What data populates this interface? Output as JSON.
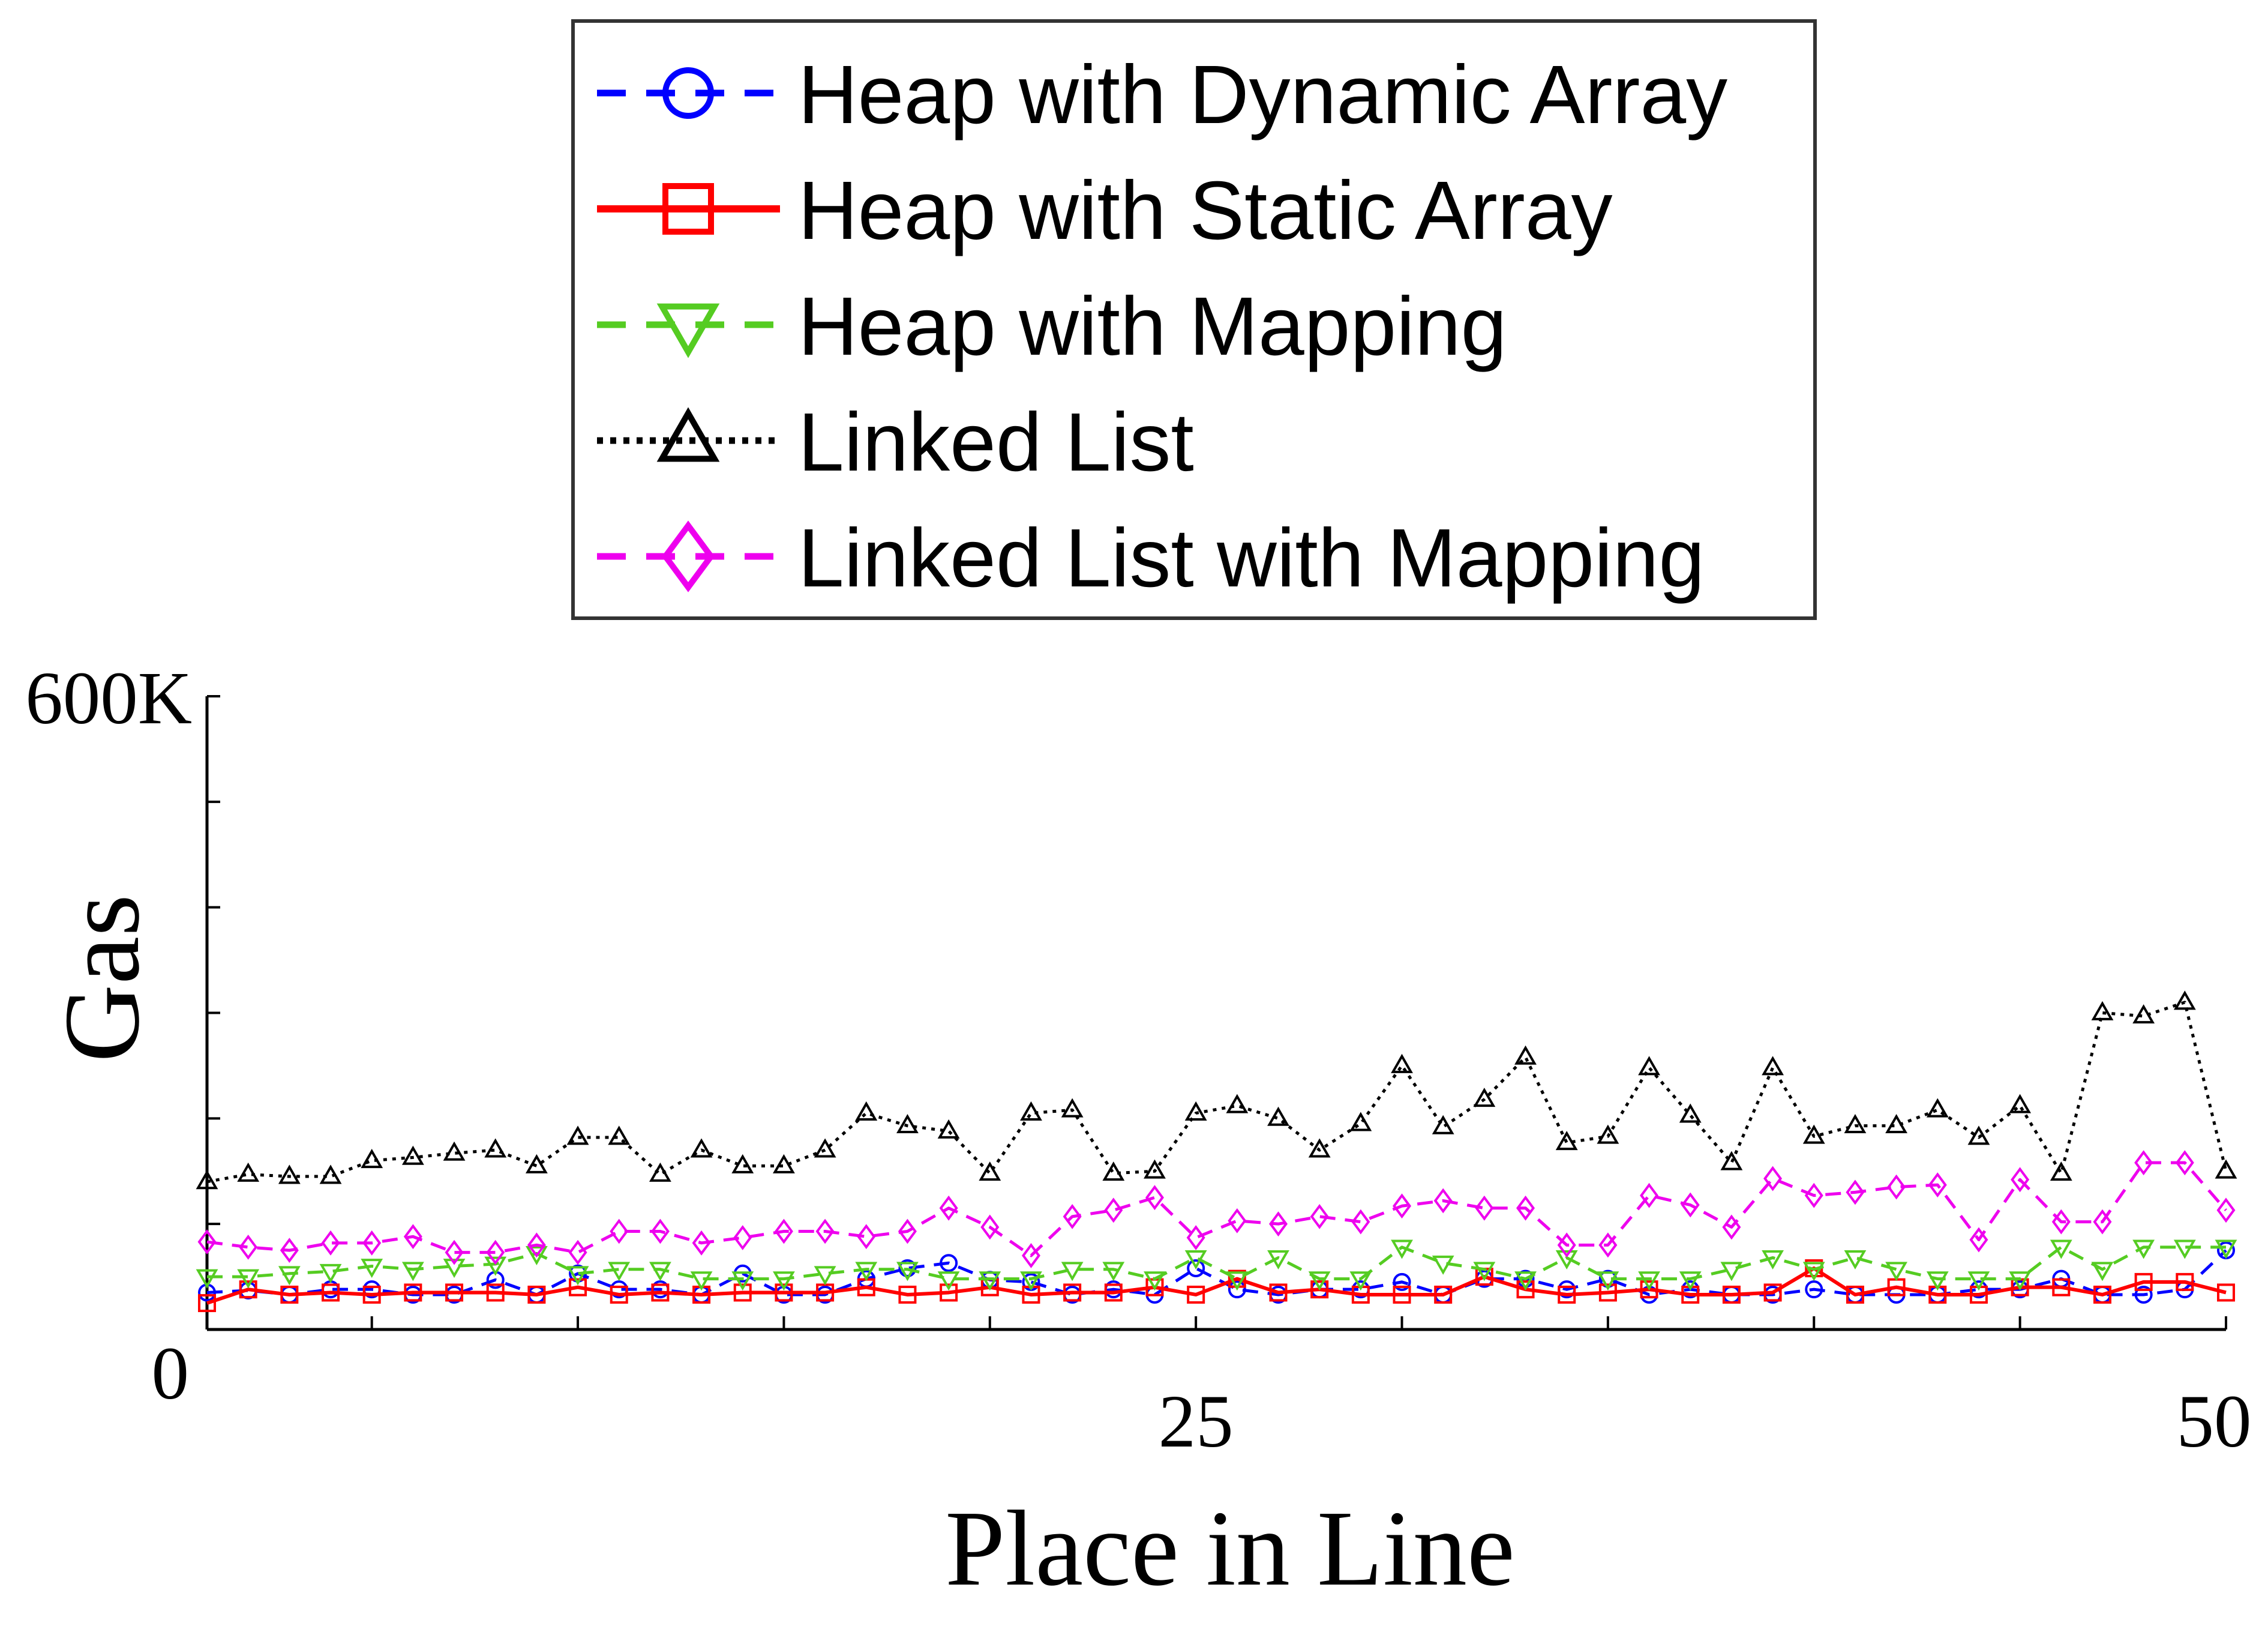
{
  "chart_data": {
    "type": "line",
    "title": "",
    "xlabel": "Place in Line",
    "ylabel": "Gas",
    "xlim": [
      1,
      50
    ],
    "ylim": [
      0,
      600000
    ],
    "x_tick_labels": [
      {
        "value": 25,
        "label": "25"
      },
      {
        "value": 50,
        "label": "50"
      }
    ],
    "y_tick_labels": [
      {
        "value": 0,
        "label": "0"
      },
      {
        "value": 600000,
        "label": "600K"
      }
    ],
    "legend_position": "top",
    "series": [
      {
        "name": "Heap with Dynamic Array",
        "color": "#0000ff",
        "marker": "circle",
        "line": "dashed",
        "values": [
          35000,
          37000,
          33000,
          38000,
          38000,
          33000,
          33000,
          47000,
          33000,
          53000,
          38000,
          38000,
          33000,
          53000,
          33000,
          33000,
          48000,
          58000,
          63000,
          47000,
          45000,
          33000,
          38000,
          33000,
          58000,
          38000,
          33000,
          38000,
          38000,
          45000,
          33000,
          48000,
          48000,
          38000,
          48000,
          33000,
          38000,
          33000,
          33000,
          38000,
          33000,
          33000,
          33000,
          38000,
          38000,
          48000,
          33000,
          33000,
          38000,
          75000
        ]
      },
      {
        "name": "Heap with Static Array",
        "color": "#ff0000",
        "marker": "square",
        "line": "solid",
        "values": [
          25000,
          38000,
          33000,
          35000,
          33000,
          35000,
          35000,
          35000,
          33000,
          40000,
          33000,
          35000,
          33000,
          35000,
          35000,
          35000,
          40000,
          33000,
          35000,
          40000,
          33000,
          35000,
          35000,
          40000,
          33000,
          48000,
          35000,
          38000,
          33000,
          33000,
          33000,
          50000,
          38000,
          33000,
          35000,
          38000,
          33000,
          33000,
          35000,
          58000,
          33000,
          40000,
          33000,
          33000,
          40000,
          40000,
          33000,
          45000,
          45000,
          35000
        ]
      },
      {
        "name": "Heap with Mapping",
        "color": "#55cc22",
        "marker": "triangle-down",
        "line": "dashed",
        "values": [
          50000,
          50000,
          53000,
          55000,
          60000,
          57000,
          60000,
          62000,
          72000,
          53000,
          57000,
          57000,
          48000,
          48000,
          48000,
          53000,
          57000,
          57000,
          48000,
          48000,
          48000,
          57000,
          57000,
          48000,
          68000,
          48000,
          68000,
          48000,
          48000,
          78000,
          63000,
          57000,
          48000,
          68000,
          48000,
          48000,
          48000,
          57000,
          68000,
          57000,
          68000,
          57000,
          48000,
          48000,
          48000,
          78000,
          57000,
          78000,
          78000,
          78000
        ]
      },
      {
        "name": "Linked List",
        "color": "#000000",
        "marker": "triangle-up",
        "line": "dotted",
        "values": [
          140000,
          147000,
          145000,
          145000,
          160000,
          163000,
          167000,
          170000,
          155000,
          182000,
          182000,
          147000,
          170000,
          155000,
          155000,
          170000,
          205000,
          193000,
          188000,
          148000,
          205000,
          208000,
          148000,
          150000,
          205000,
          212000,
          200000,
          170000,
          195000,
          250000,
          192000,
          218000,
          258000,
          177000,
          183000,
          248000,
          203000,
          158000,
          248000,
          183000,
          193000,
          193000,
          208000,
          182000,
          212000,
          148000,
          300000,
          297000,
          310000,
          150000
        ]
      },
      {
        "name": "Linked List with Mapping",
        "color": "#ee00ee",
        "marker": "diamond",
        "line": "dashed",
        "values": [
          83000,
          78000,
          75000,
          82000,
          82000,
          88000,
          73000,
          73000,
          80000,
          73000,
          93000,
          93000,
          82000,
          87000,
          93000,
          93000,
          88000,
          93000,
          115000,
          97000,
          70000,
          107000,
          113000,
          125000,
          87000,
          103000,
          100000,
          107000,
          102000,
          117000,
          122000,
          115000,
          115000,
          80000,
          80000,
          127000,
          118000,
          97000,
          143000,
          127000,
          130000,
          135000,
          137000,
          85000,
          142000,
          102000,
          102000,
          158000,
          158000,
          113000
        ]
      }
    ]
  }
}
